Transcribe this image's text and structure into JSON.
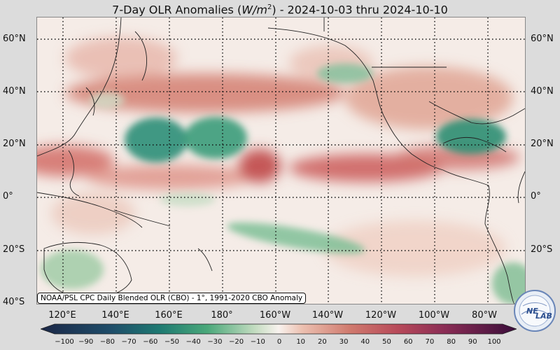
{
  "title": {
    "prefix": "7-Day OLR Anomalies (",
    "unit_base": "W/m",
    "unit_exp": "2",
    "suffix": ") - 2024-10-03 thru 2024-10-10"
  },
  "map": {
    "latitude_labels": [
      "60°N",
      "40°N",
      "20°N",
      "0°",
      "20°S",
      "40°S"
    ],
    "latitude_values": [
      60,
      40,
      20,
      0,
      -20,
      -40
    ],
    "longitude_labels": [
      "120°E",
      "140°E",
      "160°E",
      "180°",
      "160°W",
      "140°W",
      "120°W",
      "100°W",
      "80°W"
    ],
    "longitude_values": [
      120,
      140,
      160,
      180,
      200,
      220,
      240,
      260,
      280
    ],
    "extent": {
      "lon_min": 106,
      "lon_max": 290,
      "lat_min": -40,
      "lat_max": 68
    },
    "gridlines": true,
    "colors": {
      "positive_strong": "#8a2c55",
      "positive": "#c95f5a",
      "positive_light": "#e9b3a2",
      "neutral": "#f6efe9",
      "negative_light": "#c3dcc0",
      "negative": "#4aa87a",
      "negative_strong": "#1e7a72",
      "coastline": "#222222"
    },
    "anomaly_regions": [
      {
        "name": "north-pacific-high-band",
        "lon": 175,
        "lat": 39,
        "value": 25
      },
      {
        "name": "west-pacific-negative-a",
        "lon": 148,
        "lat": 24,
        "value": -45
      },
      {
        "name": "west-pacific-negative-b",
        "lon": 170,
        "lat": 25,
        "value": -40
      },
      {
        "name": "tropical-high-band-west",
        "lon": 130,
        "lat": 9,
        "value": 25
      },
      {
        "name": "dateline-positive",
        "lon": 186,
        "lat": 12,
        "value": 35
      },
      {
        "name": "east-pacific-positive",
        "lon": 240,
        "lat": 11,
        "value": 35
      },
      {
        "name": "gulf-of-mexico-negative",
        "lon": 272,
        "lat": 24,
        "value": -45
      },
      {
        "name": "north-america-positive",
        "lon": 248,
        "lat": 42,
        "value": 25
      },
      {
        "name": "south-pacific-negative",
        "lon": 200,
        "lat": -15,
        "value": -25
      },
      {
        "name": "australia-negative",
        "lon": 118,
        "lat": -25,
        "value": -20
      },
      {
        "name": "south-america-negative",
        "lon": 286,
        "lat": -30,
        "value": -25
      }
    ]
  },
  "credit": "NOAA/PSL CPC Daily Blended OLR (CBO) - 1°, 1991-2020 CBO Anomaly",
  "colorbar": {
    "ticks": [
      "−100",
      "−90",
      "−80",
      "−70",
      "−60",
      "−50",
      "−40",
      "−30",
      "−20",
      "−10",
      "0",
      "10",
      "20",
      "30",
      "40",
      "50",
      "60",
      "70",
      "80",
      "90",
      "100"
    ],
    "min": -100,
    "max": 100
  },
  "logo": {
    "text_left": "NE",
    "text_right": "LAB"
  }
}
